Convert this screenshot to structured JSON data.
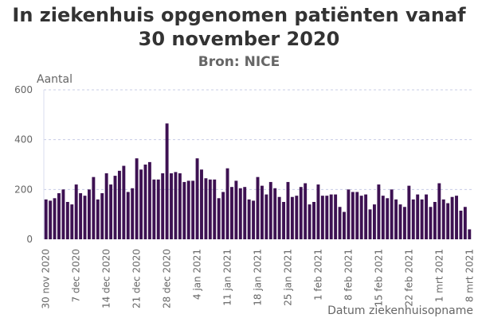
{
  "chart_data": {
    "type": "bar",
    "title": "In ziekenhuis opgenomen patiënten vanaf 30 november 2020",
    "subtitle": "Bron: NICE",
    "ylabel": "Aantal",
    "xlabel": "Datum ziekenhuisopname",
    "ylim": [
      0,
      600
    ],
    "yticks": [
      0,
      200,
      400,
      600
    ],
    "grid": true,
    "bar_color": "#3d1152",
    "xtick_labels": [
      "30 nov 2020",
      "7 dec 2020",
      "14 dec 2020",
      "21 dec 2020",
      "28 dec 2020",
      "4 jan 2021",
      "11 jan 2021",
      "18 jan 2021",
      "25 jan 2021",
      "1 feb 2021",
      "8 feb 2021",
      "15 feb 2021",
      "22 feb 2021",
      "1 mrt 2021",
      "8 mrt 2021"
    ],
    "xtick_every": 7,
    "values": [
      160,
      155,
      165,
      185,
      200,
      150,
      140,
      220,
      185,
      175,
      200,
      250,
      160,
      185,
      265,
      220,
      255,
      275,
      295,
      190,
      205,
      325,
      280,
      300,
      310,
      240,
      240,
      265,
      465,
      265,
      270,
      265,
      230,
      235,
      235,
      325,
      280,
      245,
      240,
      240,
      165,
      190,
      285,
      210,
      235,
      205,
      210,
      160,
      155,
      250,
      215,
      180,
      230,
      205,
      170,
      150,
      230,
      170,
      175,
      210,
      225,
      140,
      150,
      220,
      175,
      175,
      180,
      180,
      130,
      110,
      200,
      190,
      190,
      175,
      180,
      120,
      140,
      220,
      175,
      165,
      200,
      160,
      140,
      130,
      215,
      160,
      180,
      160,
      180,
      130,
      150,
      225,
      160,
      145,
      170,
      175,
      115,
      130,
      40
    ]
  }
}
